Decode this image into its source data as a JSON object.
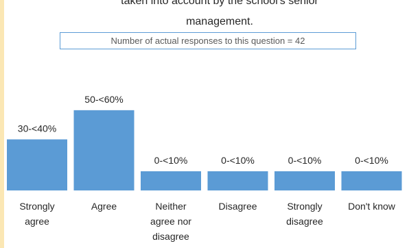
{
  "chart_data": {
    "type": "bar",
    "title_lines": [
      "taken into account by the school's senior",
      "management."
    ],
    "responses_note": "Number of actual responses to this question = 42",
    "categories": [
      [
        "Strongly",
        "agree"
      ],
      [
        "Agree"
      ],
      [
        "Neither",
        "agree nor",
        "disagree"
      ],
      [
        "Disagree"
      ],
      [
        "Strongly",
        "disagree"
      ],
      [
        "Don't know"
      ]
    ],
    "data_labels": [
      "30-<40%",
      "50-<60%",
      "0-<10%",
      "0-<10%",
      "0-<10%",
      "0-<10%"
    ],
    "values": [
      35,
      55,
      0,
      0,
      0,
      0
    ],
    "ylim": [
      0,
      100
    ],
    "bar_color": "#5b9bd5",
    "xlabel": "",
    "ylabel": ""
  }
}
